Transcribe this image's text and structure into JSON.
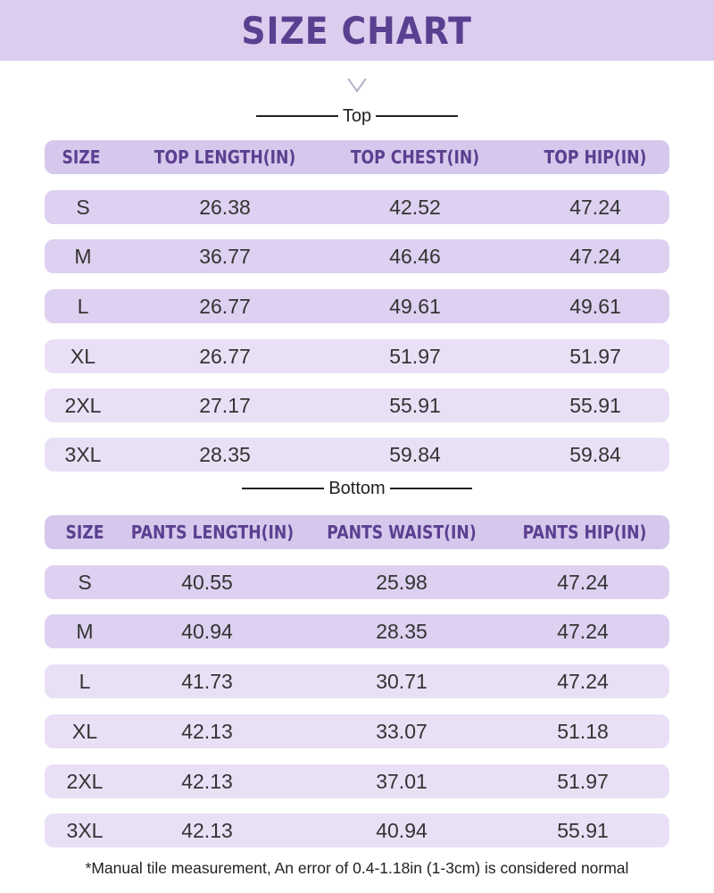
{
  "title": "SIZE CHART",
  "top": {
    "label": "Top",
    "headers": [
      "SIZE",
      "TOP LENGTH(IN)",
      "TOP CHEST(IN)",
      "TOP HIP(IN)"
    ],
    "rows": [
      [
        "S",
        "26.38",
        "42.52",
        "47.24"
      ],
      [
        "M",
        "36.77",
        "46.46",
        "47.24"
      ],
      [
        "L",
        "26.77",
        "49.61",
        "49.61"
      ],
      [
        "XL",
        "26.77",
        "51.97",
        "51.97"
      ],
      [
        "2XL",
        "27.17",
        "55.91",
        "55.91"
      ],
      [
        "3XL",
        "28.35",
        "59.84",
        "59.84"
      ]
    ]
  },
  "bottom": {
    "label": "Bottom",
    "headers": [
      "SIZE",
      "PANTS LENGTH(IN)",
      "PANTS WAIST(IN)",
      "PANTS HIP(IN)"
    ],
    "rows": [
      [
        "S",
        "40.55",
        "25.98",
        "47.24"
      ],
      [
        "M",
        "40.94",
        "28.35",
        "47.24"
      ],
      [
        "L",
        "41.73",
        "30.71",
        "47.24"
      ],
      [
        "XL",
        "42.13",
        "33.07",
        "51.18"
      ],
      [
        "2XL",
        "42.13",
        "37.01",
        "51.97"
      ],
      [
        "3XL",
        "42.13",
        "40.94",
        "55.91"
      ]
    ]
  },
  "footnote": "*Manual tile measurement, An error of 0.4-1.18in (1-3cm) is considered normal",
  "colors": {
    "header_bg": "#dccdee",
    "title_text": "#5b3f90",
    "row_dark": "#ddd0f0",
    "row_light": "#e9e0f6"
  }
}
